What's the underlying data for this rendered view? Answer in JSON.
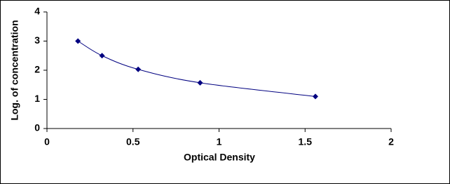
{
  "chart_data": {
    "type": "scatter",
    "smooth": true,
    "marker": "diamond",
    "color": "#000080",
    "xlabel": "Optical Density",
    "ylabel": "Log. of concentration",
    "x": [
      0.18,
      0.32,
      0.53,
      0.89,
      1.56
    ],
    "values": [
      3.0,
      2.5,
      2.03,
      1.57,
      1.1
    ],
    "xlim": [
      0,
      2
    ],
    "xticks": [
      0,
      0.5,
      1,
      1.5,
      2
    ],
    "ylim": [
      0,
      4
    ],
    "yticks": [
      0,
      1,
      2,
      3,
      4
    ],
    "grid": false
  }
}
